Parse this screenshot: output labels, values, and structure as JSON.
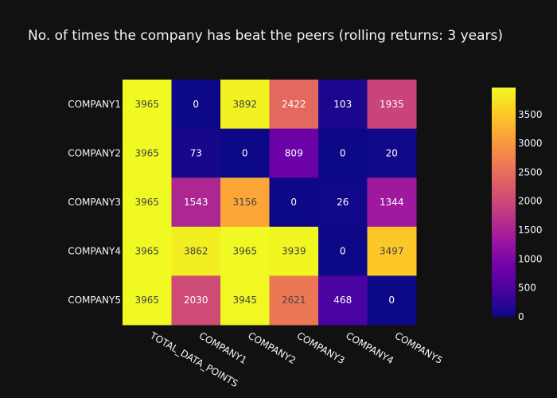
{
  "chart_data": {
    "type": "heatmap",
    "title": "No. of times the company has beat the peers (rolling returns: 3 years)",
    "x_categories": [
      "TOTAL_DATA_POINTS",
      "COMPANY1",
      "COMPANY2",
      "COMPANY3",
      "COMPANY4",
      "COMPANY5"
    ],
    "y_categories": [
      "COMPANY1",
      "COMPANY2",
      "COMPANY3",
      "COMPANY4",
      "COMPANY5"
    ],
    "values": [
      [
        3965,
        0,
        3892,
        2422,
        103,
        1935
      ],
      [
        3965,
        73,
        0,
        809,
        0,
        20
      ],
      [
        3965,
        1543,
        3156,
        0,
        26,
        1344
      ],
      [
        3965,
        3862,
        3965,
        3939,
        0,
        3497
      ],
      [
        3965,
        2030,
        3945,
        2621,
        468,
        0
      ]
    ],
    "zmin": 0,
    "zmax": 3965,
    "colorscale": "plasma",
    "colorbar_ticks": [
      0,
      500,
      1000,
      1500,
      2000,
      2500,
      3000,
      3500
    ],
    "colors": {
      "background": "#111111",
      "text": "#f2f5fa"
    }
  }
}
